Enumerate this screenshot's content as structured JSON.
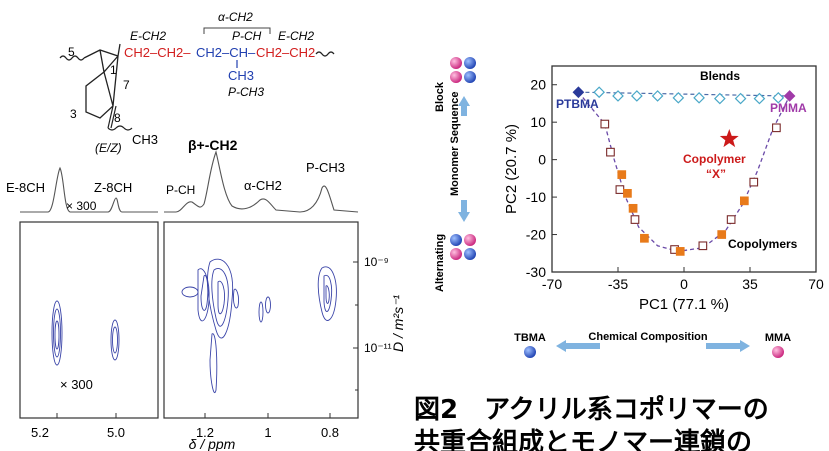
{
  "nmr": {
    "structure": {
      "ring_label_5": "5",
      "ring_label_1": "1",
      "ring_label_7": "7",
      "ring_label_3": "3",
      "ring_label_8": "8",
      "ch3": "CH3",
      "ez_label": "(E/Z)",
      "e_ch2_left": "E-CH2",
      "e_ch2_right": "E-CH2",
      "alpha_ch2": "α-CH2",
      "p_ch": "P-CH",
      "p_ch3": "P-CH3",
      "chain_red_left": "CH2–CH2–",
      "chain_blue": "CH2–CH–",
      "chain_red_right": "CH2–CH2",
      "ch3_sub": "CH3"
    },
    "spectrum_labels": {
      "e8ch": "E-8CH",
      "z8ch": "Z-8CH",
      "x300_top": "× 300",
      "beta_ch2": "β+-CH2",
      "p_ch": "P-CH",
      "alpha_ch2": "α-CH2",
      "p_ch3": "P-CH3",
      "x300_bottom": "× 300"
    },
    "x_ticks_left": [
      "5.2",
      "5.0"
    ],
    "x_ticks_right": [
      "1.2",
      "1",
      "0.8"
    ],
    "xlabel": "δ / ppm",
    "y_ticks": [
      "10⁻⁹",
      "10⁻¹¹"
    ],
    "ylabel": "D / m²s⁻¹"
  },
  "side_panel": {
    "block": "Block",
    "monomer_sequence": "Monomer Sequence",
    "alternating": "Alternating",
    "chemical_composition": "Chemical Composition",
    "tbma": "TBMA",
    "mma": "MMA",
    "colors": {
      "blue": "#2a55c8",
      "pink": "#e0479a",
      "arrow": "#7fb3e0"
    }
  },
  "chart_data": {
    "type": "scatter",
    "title": "",
    "xlabel": "PC1 (77.1 %)",
    "ylabel": "PC2 (20.7 %)",
    "xlim": [
      -70,
      70
    ],
    "ylim": [
      -30,
      25
    ],
    "x_ticks": [
      "-70",
      "-35",
      "0",
      "35",
      "70"
    ],
    "y_ticks": [
      "20",
      "10",
      "0",
      "-10",
      "-20",
      "-30"
    ],
    "annotations": {
      "blends": "Blends",
      "ptbma": "PTBMA",
      "pmma": "PMMA",
      "copolymer": "Copolymer",
      "copolymer_x": "“X”",
      "copolymers": "Copolymers"
    },
    "series": [
      {
        "name": "Blends",
        "marker": "diamond-open",
        "color": "#4aa8c8",
        "points": [
          [
            -45,
            18
          ],
          [
            -35,
            17
          ],
          [
            -25,
            17
          ],
          [
            -14,
            17
          ],
          [
            -3,
            16.5
          ],
          [
            8,
            16.5
          ],
          [
            19,
            16.3
          ],
          [
            30,
            16.3
          ],
          [
            40,
            16.3
          ],
          [
            50,
            16.5
          ]
        ]
      },
      {
        "name": "PTBMA",
        "marker": "diamond-filled",
        "color": "#2a3a9a",
        "points": [
          [
            -56,
            18
          ]
        ]
      },
      {
        "name": "PMMA",
        "marker": "diamond-filled",
        "color": "#a03aa8",
        "points": [
          [
            56,
            17
          ]
        ]
      },
      {
        "name": "Copolymers-open",
        "marker": "square-open",
        "color": "#7a2a2a",
        "points": [
          [
            -42,
            9.5
          ],
          [
            -39,
            2
          ],
          [
            -34,
            -8
          ],
          [
            -26,
            -16
          ],
          [
            -5,
            -24
          ],
          [
            10,
            -23
          ],
          [
            25,
            -16
          ],
          [
            37,
            -6
          ],
          [
            49,
            8.5
          ]
        ]
      },
      {
        "name": "Copolymers-filled",
        "marker": "square-filled",
        "color": "#e87a1a",
        "points": [
          [
            -33,
            -4
          ],
          [
            -30,
            -9
          ],
          [
            -27,
            -13
          ],
          [
            -21,
            -21
          ],
          [
            -2,
            -24.5
          ],
          [
            20,
            -20
          ],
          [
            32,
            -11
          ]
        ]
      },
      {
        "name": "Copolymer X",
        "marker": "star",
        "color": "#cc1a1a",
        "points": [
          [
            24,
            5.5
          ]
        ]
      }
    ],
    "curve": [
      [
        -56,
        18
      ],
      [
        -42,
        9.5
      ],
      [
        -37,
        0
      ],
      [
        -31,
        -10
      ],
      [
        -24,
        -18
      ],
      [
        -14,
        -23
      ],
      [
        -3,
        -24.5
      ],
      [
        10,
        -23.5
      ],
      [
        22,
        -19
      ],
      [
        31,
        -12
      ],
      [
        39,
        -3
      ],
      [
        47,
        8
      ],
      [
        56,
        17
      ]
    ],
    "blend_line": [
      [
        -56,
        18
      ],
      [
        56,
        17
      ]
    ]
  },
  "caption": {
    "line1": "図2　アクリル系コポリマーの",
    "line2": "共重合組成とモノマー連鎖の"
  }
}
